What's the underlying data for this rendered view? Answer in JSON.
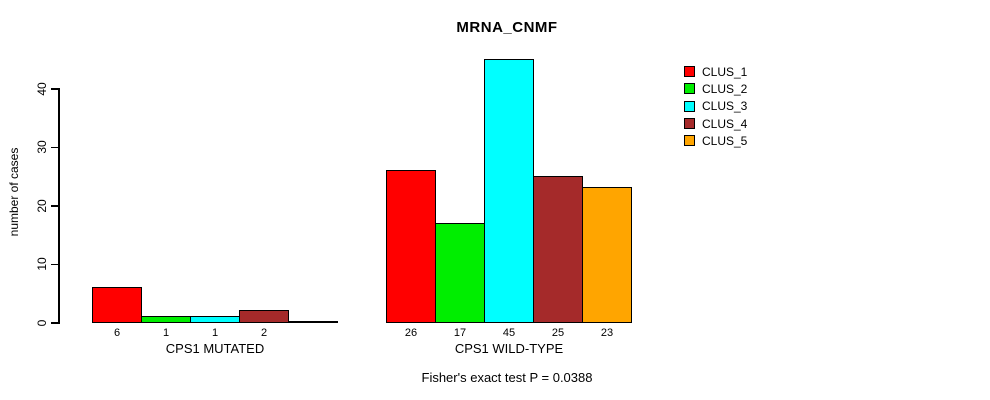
{
  "chart_data": {
    "type": "bar",
    "title": "MRNA_CNMF",
    "ylabel": "number of cases",
    "xlabel": "",
    "ylim": [
      0,
      46
    ],
    "yticks": [
      0,
      10,
      20,
      30,
      40
    ],
    "grid": false,
    "legend_position": "right",
    "categories": [
      "CPS1 MUTATED",
      "CPS1 WILD-TYPE"
    ],
    "series": [
      {
        "name": "CLUS_1",
        "color": "#ff0000",
        "values": [
          6,
          26
        ]
      },
      {
        "name": "CLUS_2",
        "color": "#00ee00",
        "values": [
          1,
          17
        ]
      },
      {
        "name": "CLUS_3",
        "color": "#00ffff",
        "values": [
          1,
          45
        ]
      },
      {
        "name": "CLUS_4",
        "color": "#a52a2a",
        "values": [
          2,
          25
        ]
      },
      {
        "name": "CLUS_5",
        "color": "#ffa500",
        "values": [
          0,
          23
        ]
      }
    ],
    "bar_value_labels": [
      [
        "6",
        "1",
        "1",
        "2",
        ""
      ],
      [
        "26",
        "17",
        "45",
        "25",
        "23"
      ]
    ],
    "annotation": "Fisher's exact test P = 0.0388"
  }
}
